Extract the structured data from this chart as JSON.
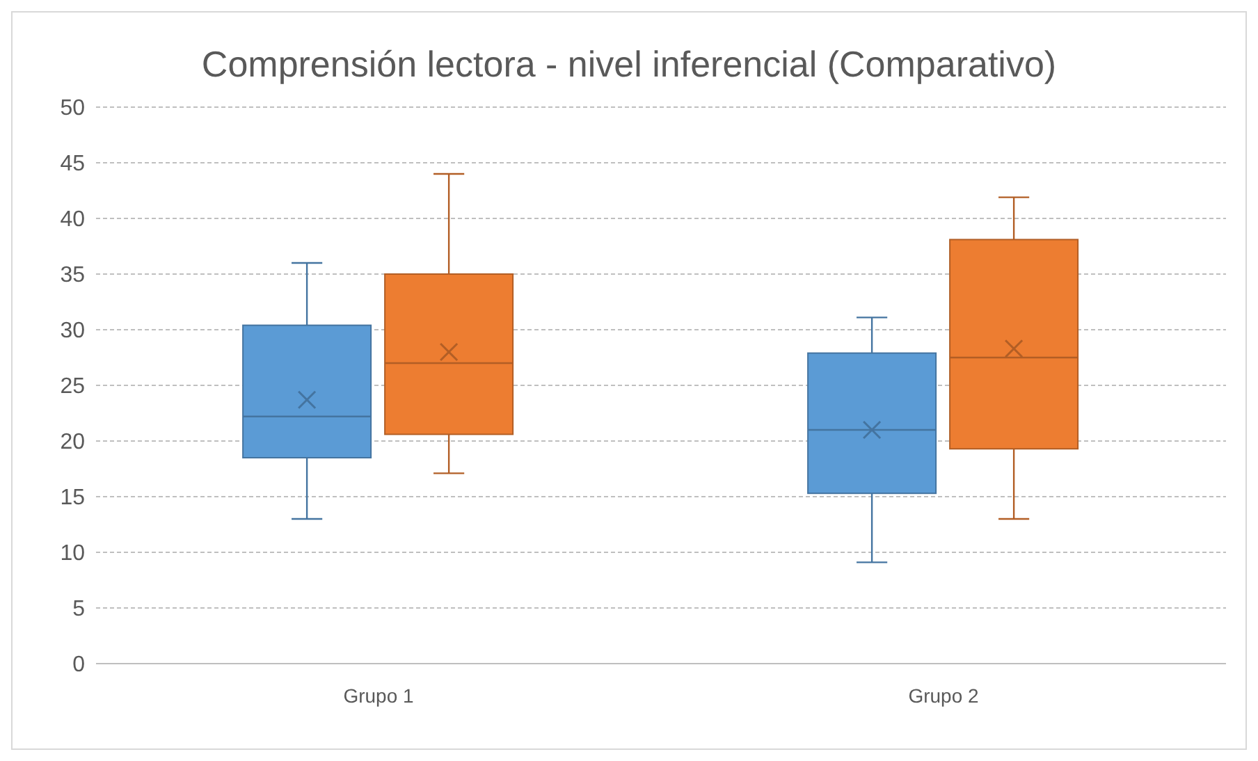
{
  "chart_data": {
    "type": "box",
    "title": "Comprensión lectora - nivel inferencial (Comparativo)",
    "categories": [
      "Grupo 1",
      "Grupo 2"
    ],
    "series": [
      {
        "color": "#5b9bd5",
        "boxes": [
          {
            "low": 13,
            "q1": 18.5,
            "median": 22.2,
            "q3": 30.4,
            "high": 36,
            "mean": 23.7
          },
          {
            "low": 9.1,
            "q1": 15.3,
            "median": 21,
            "q3": 27.9,
            "high": 31.1,
            "mean": 21
          }
        ]
      },
      {
        "color": "#ed7d31",
        "boxes": [
          {
            "low": 17.1,
            "q1": 20.6,
            "median": 27,
            "q3": 35,
            "high": 44,
            "mean": 28
          },
          {
            "low": 13,
            "q1": 19.3,
            "median": 27.5,
            "q3": 38.1,
            "high": 41.9,
            "mean": 28.3
          }
        ]
      }
    ],
    "ylim": [
      0,
      50
    ],
    "yticks": [
      0,
      5,
      10,
      15,
      20,
      25,
      30,
      35,
      40,
      45,
      50
    ],
    "grid": "y",
    "legend": false
  }
}
